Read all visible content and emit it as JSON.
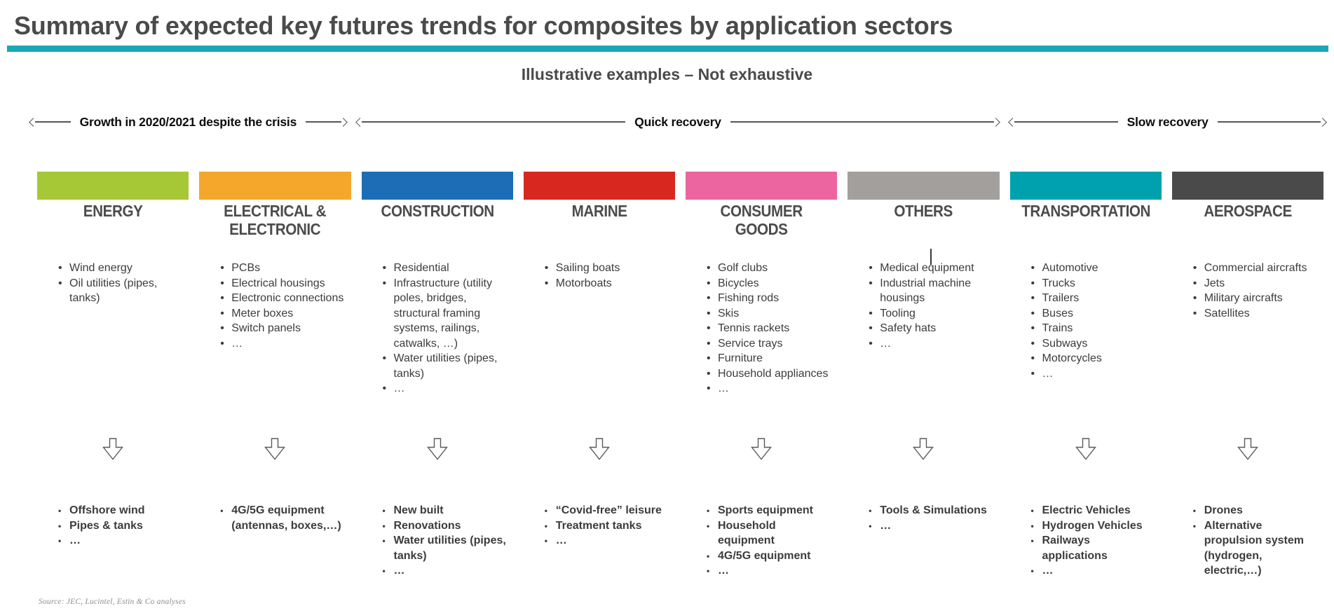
{
  "page": {
    "title": "Summary of expected key futures trends for composites by application sectors",
    "subtitle": "Illustrative examples – Not exhaustive",
    "source": "Source: JEC, Lucintel, Estin & Co analyses"
  },
  "colors": {
    "accent_teal_rule": "#1aa8b7",
    "title_text": "#4a4a4a",
    "body_text": "#3c3c3c",
    "phase_line": "#555555"
  },
  "phases": [
    {
      "label": "Growth in 2020/2021 despite the crisis",
      "columns_spanned": 2
    },
    {
      "label": "Quick recovery",
      "columns_spanned": 4
    },
    {
      "label": "Slow recovery",
      "columns_spanned": 2
    }
  ],
  "icons": {
    "down_arrow": "hollow-down-arrow",
    "phase_arrowheads": "thin-open-arrowheads"
  },
  "columns": [
    {
      "title": "ENERGY",
      "color": "#a6c836",
      "current_applications": [
        "Wind energy",
        "Oil utilities (pipes, tanks)"
      ],
      "future_trends": [
        "Offshore wind",
        "Pipes & tanks",
        "…"
      ]
    },
    {
      "title": "ELECTRICAL &\nELECTRONIC",
      "color": "#f4a72b",
      "current_applications": [
        "PCBs",
        "Electrical housings",
        "Electronic connections",
        "Meter boxes",
        "Switch panels",
        "…"
      ],
      "future_trends": [
        "4G/5G equipment (antennas, boxes,…)"
      ]
    },
    {
      "title": "CONSTRUCTION",
      "color": "#1d6db6",
      "current_applications": [
        "Residential",
        "Infrastructure (utility poles, bridges, structural framing systems, railings, catwalks, …)",
        "Water utilities (pipes, tanks)",
        "…"
      ],
      "future_trends": [
        "New built",
        "Renovations",
        "Water utilities (pipes, tanks)",
        "…"
      ]
    },
    {
      "title": "MARINE",
      "color": "#d7281f",
      "current_applications": [
        "Sailing boats",
        "Motorboats"
      ],
      "future_trends": [
        "“Covid-free” leisure",
        "Treatment tanks",
        "…"
      ]
    },
    {
      "title": "CONSUMER\nGOODS",
      "color": "#ec64a0",
      "current_applications": [
        "Golf clubs",
        "Bicycles",
        "Fishing rods",
        "Skis",
        "Tennis rackets",
        "Service trays",
        "Furniture",
        "Household appliances",
        "…"
      ],
      "future_trends": [
        "Sports equipment",
        "Household equipment",
        "4G/5G equipment",
        "…"
      ]
    },
    {
      "title": "OTHERS",
      "color": "#a29f9d",
      "current_applications": [
        "Medical equipment",
        "Industrial machine housings",
        "Tooling",
        "Safety hats",
        "…"
      ],
      "future_trends": [
        "Tools & Simulations",
        "…"
      ]
    },
    {
      "title": "TRANSPORTATION",
      "color": "#00a1ae",
      "current_applications": [
        "Automotive",
        "Trucks",
        "Trailers",
        "Buses",
        "Trains",
        "Subways",
        "Motorcycles",
        "…"
      ],
      "future_trends": [
        "Electric Vehicles",
        "Hydrogen Vehicles",
        "Railways applications",
        "…"
      ]
    },
    {
      "title": "AEROSPACE",
      "color": "#4b4a4a",
      "current_applications": [
        "Commercial aircrafts",
        "Jets",
        "Military aircrafts",
        "Satellites"
      ],
      "future_trends": [
        "Drones",
        "Alternative propulsion system (hydrogen, electric,…)"
      ]
    }
  ]
}
